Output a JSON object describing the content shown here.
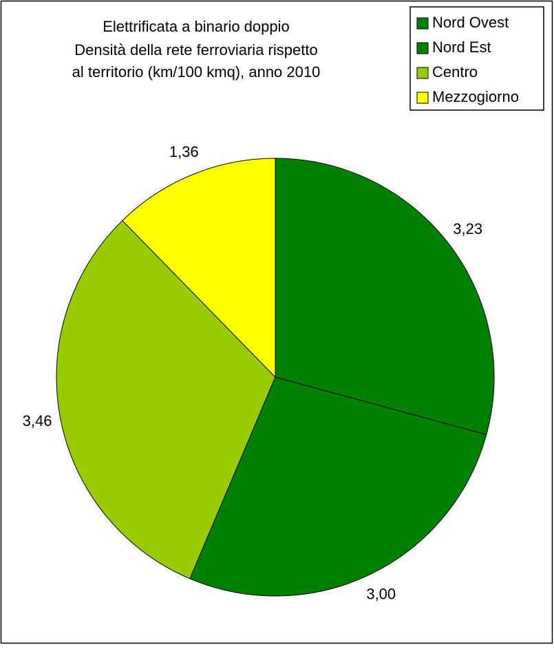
{
  "chart_data": {
    "type": "pie",
    "title": [
      "Elettrificata a binario doppio",
      "Densità della rete ferroviaria  rispetto",
      "al territorio (km/100 kmq), anno 2010"
    ],
    "categories": [
      "Nord Ovest",
      "Nord Est",
      "Centro",
      "Mezzogiorno"
    ],
    "values": [
      3.23,
      3.0,
      3.46,
      1.36
    ],
    "value_labels": [
      "3,23",
      "3,00",
      "3,46",
      "1,36"
    ],
    "colors": [
      "#008000",
      "#008000",
      "#99cc00",
      "#ffff00"
    ],
    "legend": "top-right"
  }
}
